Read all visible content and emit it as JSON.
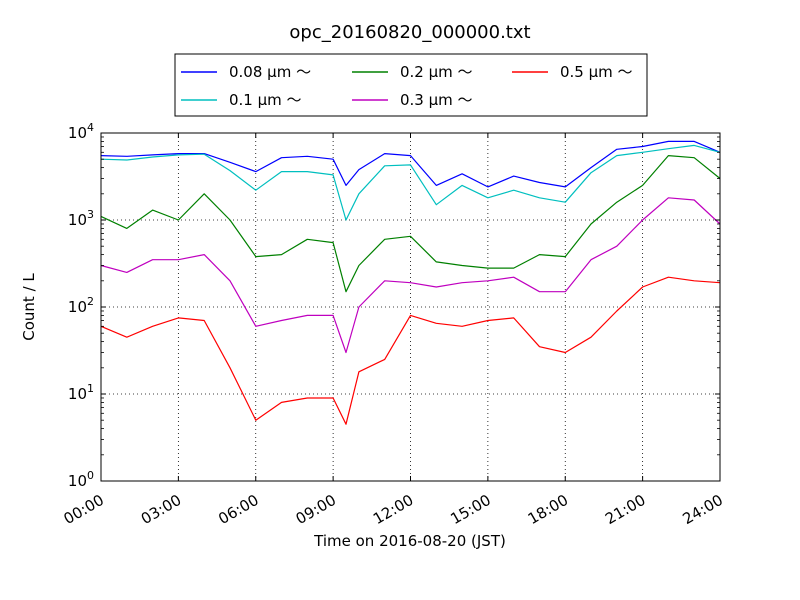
{
  "chart_data": {
    "type": "line",
    "title": "opc_20160820_000000.txt",
    "xlabel": "Time on 2016-08-20 (JST)",
    "ylabel": "Count / L",
    "xlim": [
      "00:00",
      "24:00"
    ],
    "ylim": [
      1,
      10000
    ],
    "yscale": "log",
    "grid": true,
    "legend_position": "top",
    "x_ticks": [
      "00:00",
      "03:00",
      "06:00",
      "09:00",
      "12:00",
      "15:00",
      "18:00",
      "21:00",
      "24:00"
    ],
    "y_ticks": [
      {
        "value": 1,
        "base": "10",
        "exp": "0"
      },
      {
        "value": 10,
        "base": "10",
        "exp": "1"
      },
      {
        "value": 100,
        "base": "10",
        "exp": "2"
      },
      {
        "value": 1000,
        "base": "10",
        "exp": "3"
      },
      {
        "value": 10000,
        "base": "10",
        "exp": "4"
      }
    ],
    "x": [
      "00:00",
      "01:00",
      "02:00",
      "03:00",
      "04:00",
      "05:00",
      "06:00",
      "07:00",
      "08:00",
      "09:00",
      "09:30",
      "10:00",
      "11:00",
      "12:00",
      "13:00",
      "14:00",
      "15:00",
      "16:00",
      "17:00",
      "18:00",
      "19:00",
      "20:00",
      "21:00",
      "22:00",
      "23:00",
      "24:00"
    ],
    "series": [
      {
        "name": "0.08 μm ～",
        "color": "#0000ff",
        "values": [
          5500,
          5400,
          5600,
          5800,
          5800,
          4600,
          3600,
          5200,
          5400,
          5000,
          2500,
          3800,
          5800,
          5500,
          2500,
          3400,
          2400,
          3200,
          2700,
          2400,
          4000,
          6500,
          7000,
          8000,
          8000,
          6000
        ]
      },
      {
        "name": "0.1 μm ～",
        "color": "#00bfbf",
        "values": [
          5000,
          4900,
          5300,
          5600,
          5700,
          3700,
          2200,
          3600,
          3600,
          3300,
          1000,
          2000,
          4200,
          4300,
          1500,
          2500,
          1800,
          2200,
          1800,
          1600,
          3500,
          5500,
          6000,
          6600,
          7200,
          6000
        ]
      },
      {
        "name": "0.2 μm ～",
        "color": "#008000",
        "values": [
          1100,
          800,
          1300,
          1000,
          2000,
          1000,
          380,
          400,
          600,
          550,
          150,
          300,
          600,
          650,
          330,
          300,
          280,
          280,
          400,
          380,
          900,
          1600,
          2500,
          5500,
          5200,
          3000
        ]
      },
      {
        "name": "0.3 μm ～",
        "color": "#bf00bf",
        "values": [
          300,
          250,
          350,
          350,
          400,
          200,
          60,
          70,
          80,
          80,
          30,
          100,
          200,
          190,
          170,
          190,
          200,
          220,
          150,
          150,
          350,
          500,
          1000,
          1800,
          1700,
          900
        ]
      },
      {
        "name": "0.5 μm ～",
        "color": "#ff0000",
        "values": [
          60,
          45,
          60,
          75,
          70,
          20,
          5,
          8,
          9,
          9,
          4.5,
          18,
          25,
          80,
          65,
          60,
          70,
          75,
          35,
          30,
          45,
          90,
          170,
          220,
          200,
          190
        ]
      }
    ]
  }
}
